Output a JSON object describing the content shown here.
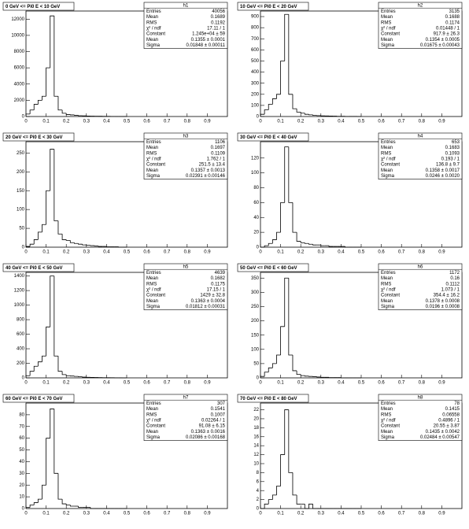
{
  "chart_data": [
    {
      "type": "histogram",
      "title": "0 GeV <= Pi0 E < 10 GeV",
      "stats_name": "h1",
      "stats": [
        {
          "label": "Entries",
          "value": "40056"
        },
        {
          "label": "Mean",
          "value": "0.1689"
        },
        {
          "label": "RMS",
          "value": "0.1192"
        },
        {
          "label": "χ² / ndf",
          "value": "17.11 / 1"
        },
        {
          "label": "Constant",
          "value": "1.245e+04 ± 59"
        },
        {
          "label": "Mean",
          "value": "0.1355 ± 0.0001"
        },
        {
          "label": "Sigma",
          "value": "0.01848 ± 0.00011"
        }
      ],
      "bins": [
        0,
        0.02,
        0.04,
        0.06,
        0.08,
        0.1,
        0.12,
        0.14,
        0.16,
        0.18,
        0.2,
        0.22,
        0.24,
        0.26,
        0.28,
        0.3,
        0.32,
        0.34,
        0.36,
        0.38,
        0.4,
        0.42,
        0.44,
        0.46,
        0.48,
        0.5
      ],
      "values": [
        300,
        800,
        1500,
        2000,
        2500,
        6000,
        12400,
        2500,
        800,
        400,
        250,
        200,
        150,
        100,
        80,
        60,
        50,
        40,
        30,
        20,
        20,
        10,
        10,
        10,
        5
      ],
      "xlim": [
        0,
        1
      ],
      "xticks": [
        0,
        0.1,
        0.2,
        0.3,
        0.4,
        0.5,
        0.6,
        0.7,
        0.8,
        0.9
      ],
      "ylim": [
        0,
        13000
      ],
      "yticks": [
        0,
        2000,
        4000,
        6000,
        8000,
        10000,
        12000
      ]
    },
    {
      "type": "histogram",
      "title": "10 GeV <= Pi0 E < 20 GeV",
      "stats_name": "h2",
      "stats": [
        {
          "label": "Entries",
          "value": "3135"
        },
        {
          "label": "Mean",
          "value": "0.1688"
        },
        {
          "label": "RMS",
          "value": "0.1174"
        },
        {
          "label": "χ² / ndf",
          "value": "0.01448 / 1"
        },
        {
          "label": "Constant",
          "value": "917.9 ± 26.3"
        },
        {
          "label": "Mean",
          "value": "0.1354 ± 0.0005"
        },
        {
          "label": "Sigma",
          "value": "0.01675 ± 0.00043"
        }
      ],
      "bins": [
        0,
        0.02,
        0.04,
        0.06,
        0.08,
        0.1,
        0.12,
        0.14,
        0.16,
        0.18,
        0.2,
        0.22,
        0.24,
        0.26,
        0.28,
        0.3,
        0.32,
        0.34,
        0.36,
        0.38,
        0.4,
        0.42,
        0.44,
        0.46,
        0.48,
        0.5
      ],
      "values": [
        20,
        60,
        110,
        160,
        200,
        500,
        920,
        200,
        70,
        40,
        30,
        20,
        15,
        10,
        8,
        6,
        5,
        4,
        3,
        2,
        2,
        1,
        1,
        1,
        0
      ],
      "xlim": [
        0,
        1
      ],
      "xticks": [
        0,
        0.1,
        0.2,
        0.3,
        0.4,
        0.5,
        0.6,
        0.7,
        0.8,
        0.9
      ],
      "ylim": [
        0,
        950
      ],
      "yticks": [
        0,
        100,
        200,
        300,
        400,
        500,
        600,
        700,
        800,
        900
      ]
    },
    {
      "type": "histogram",
      "title": "20 GeV <= Pi0 E < 30 GeV",
      "stats_name": "h3",
      "stats": [
        {
          "label": "Entries",
          "value": "1106"
        },
        {
          "label": "Mean",
          "value": "0.1697"
        },
        {
          "label": "RMS",
          "value": "0.1109"
        },
        {
          "label": "χ² / ndf",
          "value": "1.762 / 1"
        },
        {
          "label": "Constant",
          "value": "251.5 ± 13.4"
        },
        {
          "label": "Mean",
          "value": "0.1357 ± 0.0013"
        },
        {
          "label": "Sigma",
          "value": "0.02391 ± 0.00146"
        }
      ],
      "bins": [
        0,
        0.02,
        0.04,
        0.06,
        0.08,
        0.1,
        0.12,
        0.14,
        0.16,
        0.18,
        0.2,
        0.22,
        0.24,
        0.26,
        0.28,
        0.3,
        0.32,
        0.34,
        0.36,
        0.38,
        0.4,
        0.42,
        0.44,
        0.46,
        0.48,
        0.5
      ],
      "values": [
        2,
        8,
        20,
        40,
        60,
        150,
        260,
        70,
        35,
        20,
        18,
        12,
        10,
        8,
        6,
        5,
        4,
        3,
        2,
        2,
        1,
        1,
        1,
        0,
        0
      ],
      "xlim": [
        0,
        1
      ],
      "xticks": [
        0,
        0.1,
        0.2,
        0.3,
        0.4,
        0.5,
        0.6,
        0.7,
        0.8,
        0.9
      ],
      "ylim": [
        0,
        280
      ],
      "yticks": [
        0,
        50,
        100,
        150,
        200,
        250
      ]
    },
    {
      "type": "histogram",
      "title": "30 GeV <= Pi0 E < 40 GeV",
      "stats_name": "h4",
      "stats": [
        {
          "label": "Entries",
          "value": "653"
        },
        {
          "label": "Mean",
          "value": "0.1683"
        },
        {
          "label": "RMS",
          "value": "0.1093"
        },
        {
          "label": "χ² / ndf",
          "value": "0.193 / 1"
        },
        {
          "label": "Constant",
          "value": "136.8 ± 9.7"
        },
        {
          "label": "Mean",
          "value": "0.1358 ± 0.0017"
        },
        {
          "label": "Sigma",
          "value": "0.0246 ± 0.0020"
        }
      ],
      "bins": [
        0,
        0.02,
        0.04,
        0.06,
        0.08,
        0.1,
        0.12,
        0.14,
        0.16,
        0.18,
        0.2,
        0.22,
        0.24,
        0.26,
        0.28,
        0.3,
        0.32,
        0.34,
        0.36,
        0.38,
        0.4,
        0.42,
        0.44,
        0.46,
        0.48,
        0.5
      ],
      "values": [
        0,
        2,
        5,
        10,
        20,
        60,
        135,
        60,
        20,
        8,
        6,
        5,
        4,
        3,
        3,
        2,
        2,
        1,
        1,
        1,
        1,
        0,
        0,
        0,
        0
      ],
      "xlim": [
        0,
        1
      ],
      "xticks": [
        0,
        0.1,
        0.2,
        0.3,
        0.4,
        0.5,
        0.6,
        0.7,
        0.8,
        0.9
      ],
      "ylim": [
        0,
        142
      ],
      "yticks": [
        0,
        20,
        40,
        60,
        80,
        100,
        120
      ]
    },
    {
      "type": "histogram",
      "title": "40 GeV <= Pi0 E < 50 GeV",
      "stats_name": "h5",
      "stats": [
        {
          "label": "Entries",
          "value": "4639"
        },
        {
          "label": "Mean",
          "value": "0.1682"
        },
        {
          "label": "RMS",
          "value": "0.1175"
        },
        {
          "label": "χ² / ndf",
          "value": "17.15 / 1"
        },
        {
          "label": "Constant",
          "value": "1429 ± 32.8"
        },
        {
          "label": "Mean",
          "value": "0.1363 ± 0.0004"
        },
        {
          "label": "Sigma",
          "value": "0.01812 ± 0.00031"
        }
      ],
      "bins": [
        0,
        0.02,
        0.04,
        0.06,
        0.08,
        0.1,
        0.12,
        0.14,
        0.16,
        0.18,
        0.2,
        0.22,
        0.24,
        0.26,
        0.28,
        0.3,
        0.32,
        0.34,
        0.36,
        0.38,
        0.4,
        0.42,
        0.44,
        0.46,
        0.48,
        0.5
      ],
      "values": [
        30,
        90,
        160,
        220,
        300,
        700,
        1400,
        300,
        90,
        45,
        30,
        25,
        20,
        15,
        10,
        8,
        6,
        5,
        4,
        3,
        2,
        2,
        1,
        1,
        0
      ],
      "xlim": [
        0,
        1
      ],
      "xticks": [
        0,
        0.1,
        0.2,
        0.3,
        0.4,
        0.5,
        0.6,
        0.7,
        0.8,
        0.9
      ],
      "ylim": [
        0,
        1450
      ],
      "yticks": [
        0,
        200,
        400,
        600,
        800,
        1000,
        1200,
        1400
      ]
    },
    {
      "type": "histogram",
      "title": "50 GeV <= Pi0 E < 60 GeV",
      "stats_name": "h6",
      "stats": [
        {
          "label": "Entries",
          "value": "1172"
        },
        {
          "label": "Mean",
          "value": "0.16"
        },
        {
          "label": "RMS",
          "value": "0.1112"
        },
        {
          "label": "χ² / ndf",
          "value": "1.073 / 1"
        },
        {
          "label": "Constant",
          "value": "354.4 ± 16.2"
        },
        {
          "label": "Mean",
          "value": "0.1378 ± 0.0008"
        },
        {
          "label": "Sigma",
          "value": "0.0196 ± 0.0008"
        }
      ],
      "bins": [
        0,
        0.02,
        0.04,
        0.06,
        0.08,
        0.1,
        0.12,
        0.14,
        0.16,
        0.18,
        0.2,
        0.22,
        0.24,
        0.26,
        0.28,
        0.3,
        0.32,
        0.34,
        0.36,
        0.38,
        0.4,
        0.42,
        0.44,
        0.46,
        0.48,
        0.5
      ],
      "values": [
        5,
        20,
        35,
        50,
        80,
        180,
        350,
        80,
        25,
        12,
        8,
        6,
        5,
        4,
        3,
        2,
        2,
        1,
        1,
        1,
        0,
        0,
        0,
        0,
        0
      ],
      "xlim": [
        0,
        1
      ],
      "xticks": [
        0,
        0.1,
        0.2,
        0.3,
        0.4,
        0.5,
        0.6,
        0.7,
        0.8,
        0.9
      ],
      "ylim": [
        0,
        370
      ],
      "yticks": [
        0,
        50,
        100,
        150,
        200,
        250,
        300,
        350
      ]
    },
    {
      "type": "histogram",
      "title": "60 GeV <= Pi0 E < 70 GeV",
      "stats_name": "h7",
      "stats": [
        {
          "label": "Entries",
          "value": "307"
        },
        {
          "label": "Mean",
          "value": "0.1541"
        },
        {
          "label": "RMS",
          "value": "0.1007"
        },
        {
          "label": "χ² / ndf",
          "value": "0.02264 / 1"
        },
        {
          "label": "Constant",
          "value": "91.08 ± 6.15"
        },
        {
          "label": "Mean",
          "value": "0.1363 ± 0.0016"
        },
        {
          "label": "Sigma",
          "value": "0.02086 ± 0.00168"
        }
      ],
      "bins": [
        0,
        0.02,
        0.04,
        0.06,
        0.08,
        0.1,
        0.12,
        0.14,
        0.16,
        0.18,
        0.2,
        0.22,
        0.24,
        0.26,
        0.28,
        0.3,
        0.32,
        0.34,
        0.36,
        0.38,
        0.4,
        0.42,
        0.44,
        0.46,
        0.48,
        0.5
      ],
      "values": [
        1,
        3,
        5,
        8,
        20,
        60,
        85,
        30,
        8,
        4,
        3,
        2,
        2,
        1,
        1,
        1,
        0,
        0,
        0,
        0,
        0,
        0,
        0,
        0,
        0
      ],
      "xlim": [
        0,
        1
      ],
      "xticks": [
        0,
        0.1,
        0.2,
        0.3,
        0.4,
        0.5,
        0.6,
        0.7,
        0.8,
        0.9
      ],
      "ylim": [
        0,
        90
      ],
      "yticks": [
        0,
        10,
        20,
        30,
        40,
        50,
        60,
        70,
        80
      ]
    },
    {
      "type": "histogram",
      "title": "70 GeV <= Pi0 E < 80 GeV",
      "stats_name": "h8",
      "stats": [
        {
          "label": "Entries",
          "value": "78"
        },
        {
          "label": "Mean",
          "value": "0.1415"
        },
        {
          "label": "RMS",
          "value": "0.06558"
        },
        {
          "label": "χ² / ndf",
          "value": "0.4896 / 1"
        },
        {
          "label": "Constant",
          "value": "20.55 ± 3.87"
        },
        {
          "label": "Mean",
          "value": "0.1435 ± 0.0042"
        },
        {
          "label": "Sigma",
          "value": "0.02484 ± 0.00547"
        }
      ],
      "bins": [
        0,
        0.02,
        0.04,
        0.06,
        0.08,
        0.1,
        0.12,
        0.14,
        0.16,
        0.18,
        0.2,
        0.22,
        0.24,
        0.26,
        0.28,
        0.3,
        0.32,
        0.34,
        0.36,
        0.38,
        0.4,
        0.42,
        0.44,
        0.46,
        0.48,
        0.5
      ],
      "values": [
        0,
        1,
        2,
        3,
        5,
        12,
        22,
        8,
        3,
        1,
        1,
        0,
        1,
        0,
        0,
        0,
        0,
        0,
        0,
        0,
        0,
        0,
        0,
        0,
        0
      ],
      "xlim": [
        0,
        1
      ],
      "xticks": [
        0,
        0.1,
        0.2,
        0.3,
        0.4,
        0.5,
        0.6,
        0.7,
        0.8,
        0.9
      ],
      "ylim": [
        0,
        23.5
      ],
      "yticks": [
        0,
        2,
        4,
        6,
        8,
        10,
        12,
        14,
        16,
        18,
        20,
        22
      ]
    }
  ]
}
